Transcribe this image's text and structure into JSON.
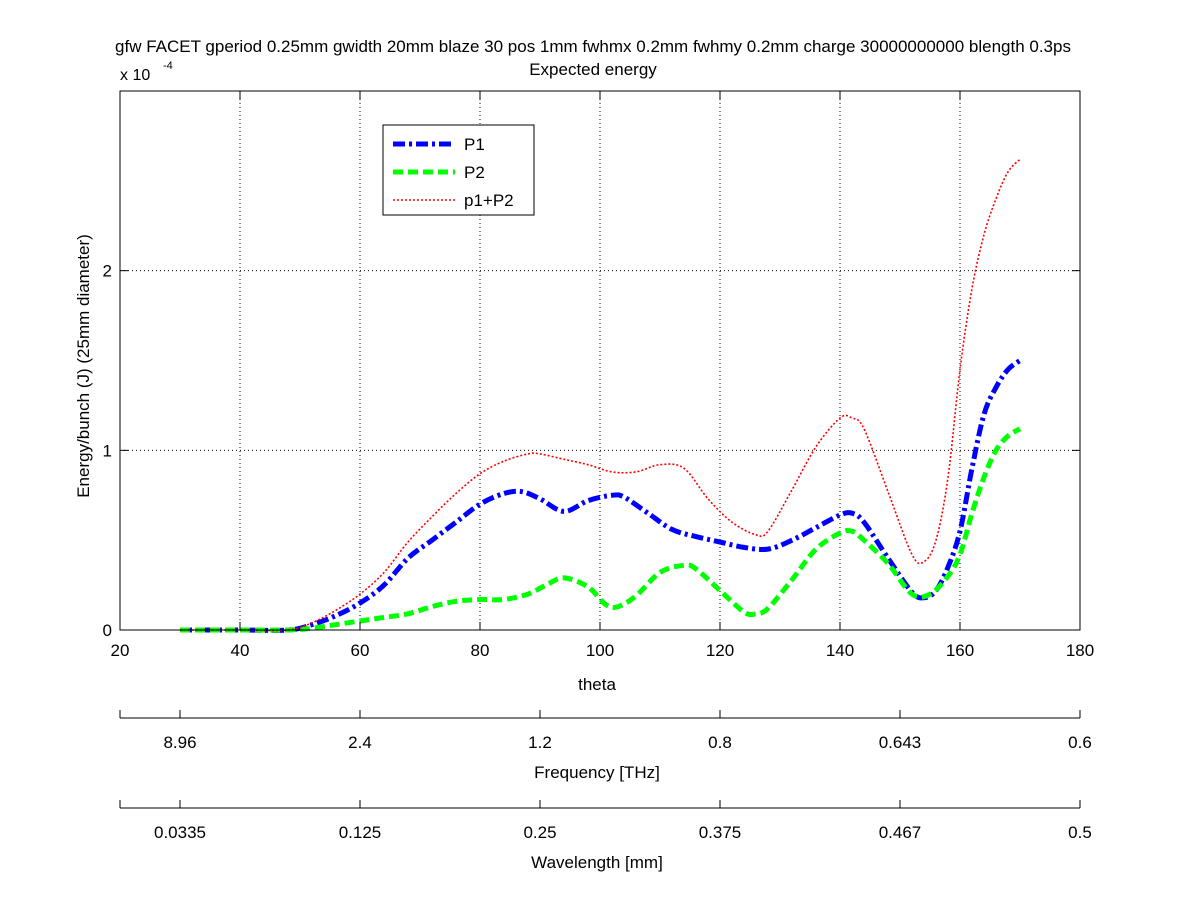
{
  "chart_data": {
    "type": "line",
    "title": "gfw FACET gperiod 0.25mm gwidth 20mm blaze 30 pos 1mm fwhmx 0.2mm fwhmy 0.2mm charge 30000000000 blength 0.3ps",
    "subtitle": "Expected energy",
    "xlabel": "theta",
    "ylabel": "Energy/bunch (J) (25mm diameter)",
    "y_multiplier_base": "x 10",
    "y_multiplier_exp": "-4",
    "xlim": [
      20,
      180
    ],
    "ylim": [
      0,
      3.0
    ],
    "y_unit_scale": "1e-4",
    "xticks": [
      20,
      40,
      60,
      80,
      100,
      120,
      140,
      160,
      180
    ],
    "xtick_labels": [
      "20",
      "40",
      "60",
      "80",
      "100",
      "120",
      "140",
      "160",
      "180"
    ],
    "yticks": [
      0,
      1,
      2
    ],
    "ytick_labels": [
      "0",
      "1",
      "2"
    ],
    "grid": true,
    "legend_position": "top-left",
    "series": [
      {
        "name": "P1",
        "color": "#0000ff",
        "style": "dash-dot",
        "x": [
          30,
          40,
          48,
          52,
          56,
          60,
          64,
          68,
          72,
          76,
          80,
          84,
          87,
          90,
          94,
          98,
          102,
          104,
          108,
          112,
          116,
          120,
          124,
          128,
          132,
          136,
          140,
          142,
          144,
          148,
          152,
          154,
          156,
          158,
          160,
          162,
          164,
          166,
          168,
          170
        ],
        "y": [
          0,
          0,
          0,
          0.03,
          0.08,
          0.15,
          0.25,
          0.4,
          0.5,
          0.6,
          0.7,
          0.76,
          0.77,
          0.73,
          0.66,
          0.72,
          0.75,
          0.74,
          0.65,
          0.56,
          0.52,
          0.49,
          0.46,
          0.45,
          0.5,
          0.57,
          0.64,
          0.65,
          0.6,
          0.4,
          0.21,
          0.18,
          0.22,
          0.35,
          0.55,
          0.9,
          1.2,
          1.35,
          1.45,
          1.5
        ]
      },
      {
        "name": "P2",
        "color": "#00ff00",
        "style": "dashed",
        "x": [
          30,
          40,
          48,
          52,
          56,
          60,
          64,
          68,
          72,
          76,
          80,
          84,
          88,
          91,
          94,
          98,
          101,
          103,
          106,
          110,
          114,
          116,
          120,
          124,
          126,
          128,
          132,
          136,
          140,
          142,
          144,
          148,
          152,
          155,
          158,
          160,
          162,
          164,
          166,
          168,
          170
        ],
        "y": [
          0,
          0,
          0,
          0.01,
          0.03,
          0.05,
          0.07,
          0.09,
          0.13,
          0.16,
          0.17,
          0.17,
          0.2,
          0.25,
          0.29,
          0.24,
          0.14,
          0.13,
          0.19,
          0.32,
          0.36,
          0.34,
          0.22,
          0.1,
          0.09,
          0.12,
          0.28,
          0.45,
          0.54,
          0.55,
          0.5,
          0.37,
          0.2,
          0.2,
          0.3,
          0.42,
          0.65,
          0.85,
          1.0,
          1.08,
          1.12
        ]
      },
      {
        "name": "p1+P2",
        "color": "#ff0000",
        "style": "dotted",
        "x": [
          30,
          40,
          48,
          52,
          56,
          60,
          64,
          68,
          72,
          76,
          80,
          84,
          88,
          90,
          94,
          98,
          102,
          106,
          110,
          114,
          118,
          122,
          126,
          128,
          132,
          136,
          140,
          142,
          144,
          148,
          152,
          154,
          156,
          158,
          160,
          162,
          164,
          166,
          168,
          170
        ],
        "y": [
          0,
          0,
          0,
          0.04,
          0.11,
          0.2,
          0.32,
          0.49,
          0.63,
          0.76,
          0.87,
          0.94,
          0.98,
          0.98,
          0.95,
          0.92,
          0.88,
          0.88,
          0.92,
          0.9,
          0.73,
          0.6,
          0.53,
          0.55,
          0.78,
          1.02,
          1.18,
          1.18,
          1.12,
          0.77,
          0.42,
          0.38,
          0.5,
          0.85,
          1.45,
          1.9,
          2.2,
          2.4,
          2.55,
          2.62
        ]
      }
    ],
    "secondary_axes": [
      {
        "label": "Frequency [THz]",
        "tick_labels": [
          "8.96",
          "2.4",
          "1.2",
          "0.8",
          "0.643",
          "0.6"
        ],
        "tick_theta": [
          30,
          60,
          90,
          120,
          150,
          180
        ]
      },
      {
        "label": "Wavelength [mm]",
        "tick_labels": [
          "0.0335",
          "0.125",
          "0.25",
          "0.375",
          "0.467",
          "0.5"
        ],
        "tick_theta": [
          30,
          60,
          90,
          120,
          150,
          180
        ]
      }
    ]
  }
}
